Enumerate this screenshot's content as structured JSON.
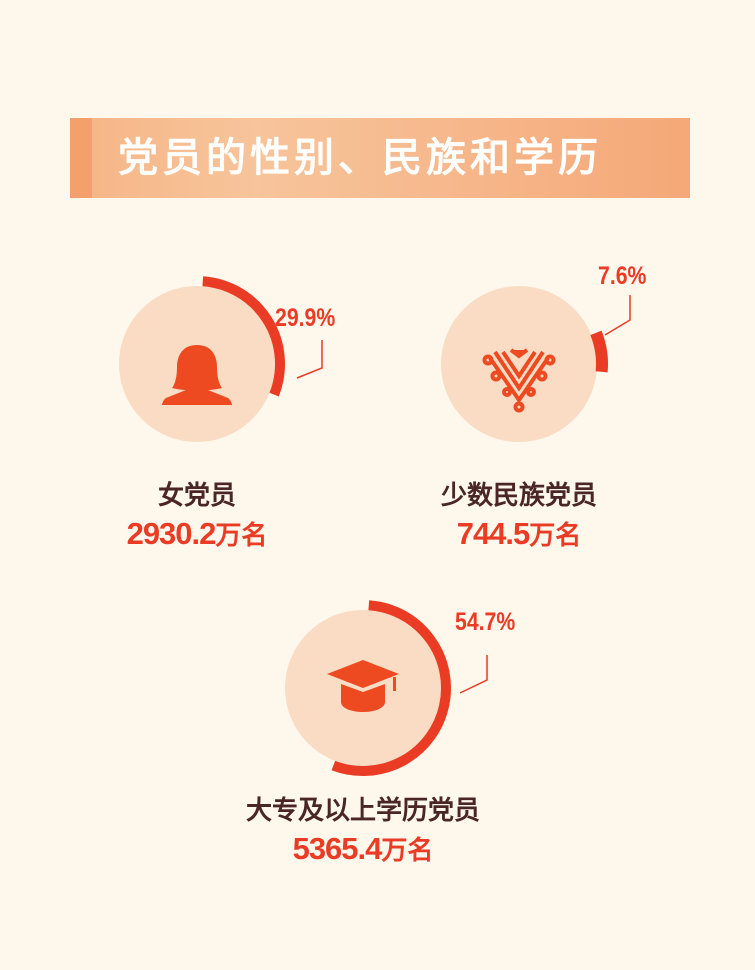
{
  "title": "党员的性别、民族和学历",
  "colors": {
    "background": "#fdf7ec",
    "accent": "#ea3b25",
    "circle": "#f9dcc3",
    "banner": "#f6b585"
  },
  "chart_data": {
    "type": "gauge",
    "items": [
      {
        "name": "女党员",
        "value": "2930.2",
        "unit": "万名",
        "percent": 29.9,
        "percent_label": "29.9%",
        "icon": "woman-icon"
      },
      {
        "name": "少数民族党员",
        "value": "744.5",
        "unit": "万名",
        "percent": 7.6,
        "percent_label": "7.6%",
        "icon": "ethnic-pattern-icon"
      },
      {
        "name": "大专及以上学历党员",
        "value": "5365.4",
        "unit": "万名",
        "percent": 54.7,
        "percent_label": "54.7%",
        "icon": "graduation-cap-icon"
      }
    ]
  }
}
